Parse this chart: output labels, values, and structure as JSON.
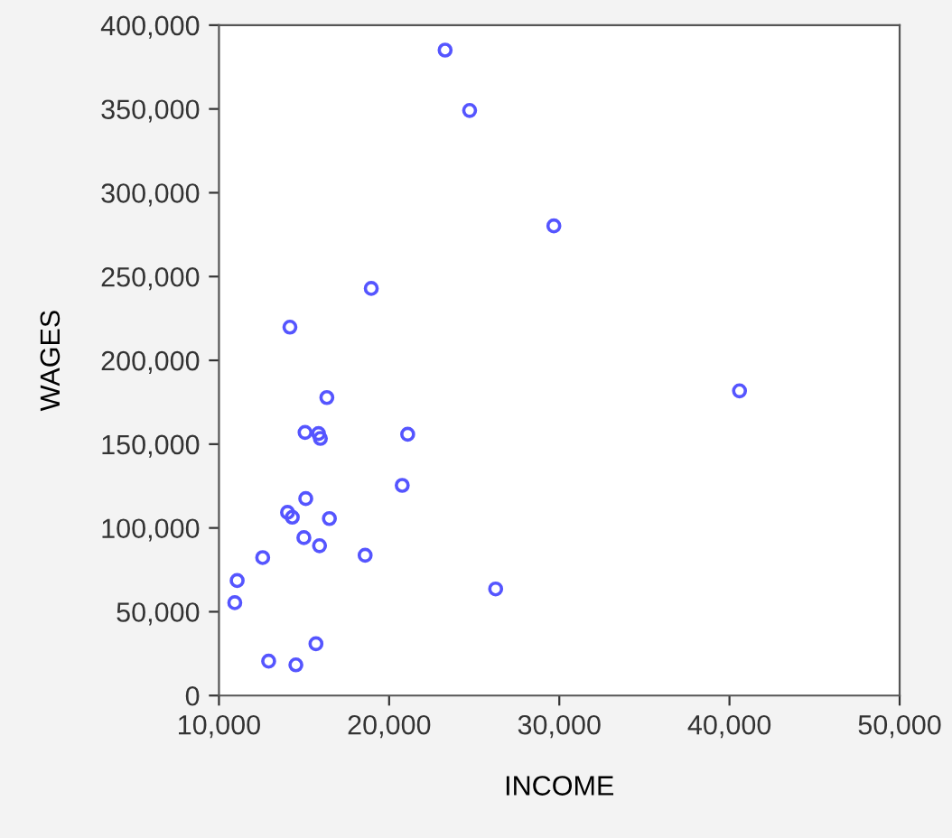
{
  "chart_data": {
    "type": "scatter",
    "xlabel": "INCOME",
    "ylabel": "WAGES",
    "x": [
      18950,
      14170,
      16340,
      15060,
      15850,
      15960,
      21090,
      20770,
      15100,
      14030,
      14310,
      16490,
      14990,
      15910,
      12570,
      18590,
      11070,
      10930,
      26260,
      15700,
      12920,
      14520,
      23290,
      24730,
      29680,
      40590
    ],
    "values": [
      242900,
      219800,
      177800,
      157000,
      156300,
      153400,
      155900,
      125400,
      117500,
      109300,
      106400,
      105600,
      94200,
      89400,
      82300,
      83700,
      68600,
      55400,
      63600,
      30900,
      20500,
      18300,
      385100,
      349100,
      280200,
      181800
    ],
    "color": "#5555ff",
    "marker": "circle",
    "grid": false,
    "xlim": [
      10000,
      50000
    ],
    "xticks": [
      {
        "value": 10000,
        "label": "10,000"
      },
      {
        "value": 20000,
        "label": "20,000"
      },
      {
        "value": 30000,
        "label": "30,000"
      },
      {
        "value": 40000,
        "label": "40,000"
      },
      {
        "value": 50000,
        "label": "50,000"
      }
    ],
    "ylim": [
      0,
      400000
    ],
    "yticks": [
      {
        "value": 0,
        "label": "0"
      },
      {
        "value": 50000,
        "label": "50,000"
      },
      {
        "value": 100000,
        "label": "100,000"
      },
      {
        "value": 150000,
        "label": "150,000"
      },
      {
        "value": 200000,
        "label": "200,000"
      },
      {
        "value": 250000,
        "label": "250,000"
      },
      {
        "value": 300000,
        "label": "300,000"
      },
      {
        "value": 350000,
        "label": "350,000"
      },
      {
        "value": 400000,
        "label": "400,000"
      }
    ]
  }
}
